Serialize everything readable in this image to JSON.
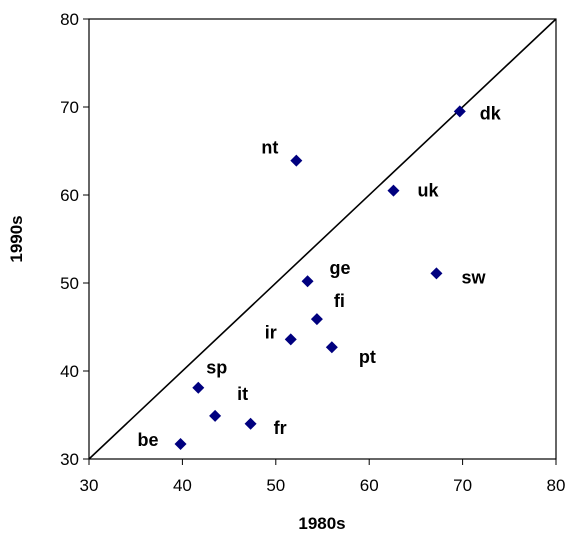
{
  "chart_data": {
    "type": "scatter",
    "title": "",
    "xlabel": "1980s",
    "ylabel": "1990s",
    "xlim": [
      30,
      80
    ],
    "ylim": [
      30,
      80
    ],
    "xticks": [
      "30",
      "40",
      "50",
      "60",
      "70",
      "80"
    ],
    "yticks": [
      "30",
      "40",
      "50",
      "60",
      "70",
      "80"
    ],
    "grid": false,
    "reference_line": {
      "from": [
        30,
        30
      ],
      "to": [
        80,
        80
      ]
    },
    "marker_color": "#00007F",
    "points": [
      {
        "label": "be",
        "x": 39.8,
        "y": 31.7
      },
      {
        "label": "sp",
        "x": 41.7,
        "y": 38.1
      },
      {
        "label": "it",
        "x": 43.5,
        "y": 34.9
      },
      {
        "label": "fr",
        "x": 47.3,
        "y": 34.0
      },
      {
        "label": "ir",
        "x": 51.6,
        "y": 43.6
      },
      {
        "label": "nt",
        "x": 52.2,
        "y": 63.9
      },
      {
        "label": "ge",
        "x": 53.4,
        "y": 50.2
      },
      {
        "label": "fi",
        "x": 54.4,
        "y": 45.9
      },
      {
        "label": "pt",
        "x": 56.0,
        "y": 42.7
      },
      {
        "label": "uk",
        "x": 62.6,
        "y": 60.5
      },
      {
        "label": "sw",
        "x": 67.2,
        "y": 51.1
      },
      {
        "label": "dk",
        "x": 69.7,
        "y": 69.5
      }
    ]
  }
}
